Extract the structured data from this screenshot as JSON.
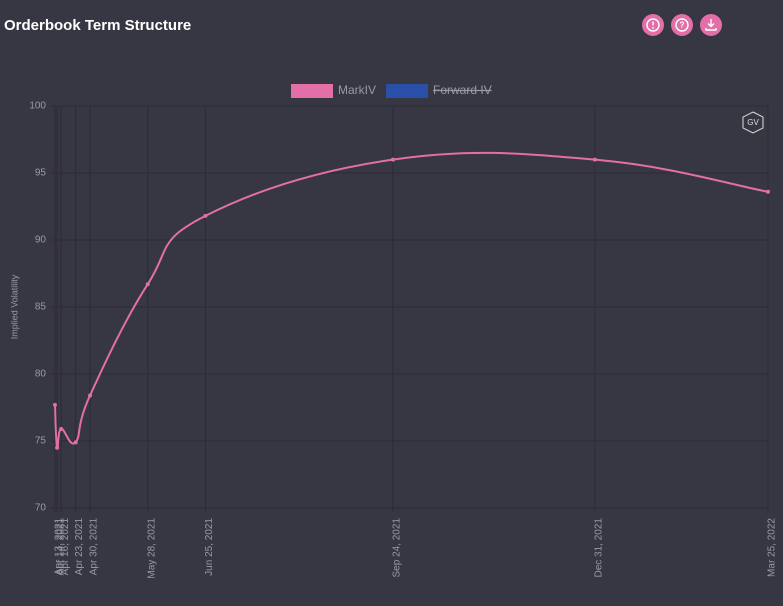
{
  "header": {
    "title": "Orderbook Term Structure"
  },
  "watermark": "GV",
  "chart_data": {
    "type": "line",
    "y_label": "Implied Volatility",
    "x": [
      "Apr 13, 2021",
      "Apr 14, 2021",
      "Apr 16, 2021",
      "Apr 23, 2021",
      "Apr 30, 2021",
      "May 28, 2021",
      "Jun 25, 2021",
      "Sep 24, 2021",
      "Dec 31, 2021",
      "Mar 25, 2022"
    ],
    "series": [
      {
        "name": "MarkIV",
        "color": "#e26fa8",
        "values": [
          77.7,
          74.5,
          75.9,
          74.9,
          78.4,
          86.7,
          91.8,
          96.0,
          96.0,
          93.6
        ]
      },
      {
        "name": "Forward IV",
        "color": "#2a4fa8",
        "hidden": true,
        "values": [
          null,
          null,
          null,
          null,
          null,
          null,
          null,
          null,
          null,
          null
        ]
      }
    ],
    "ylim": [
      70,
      100
    ],
    "yticks": [
      70,
      75,
      80,
      85,
      90,
      95,
      100
    ],
    "grid": true
  }
}
